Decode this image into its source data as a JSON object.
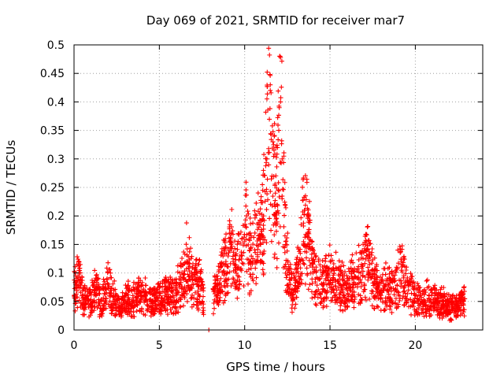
{
  "chart_data": {
    "type": "scatter",
    "title": "Day 069 of 2021, SRMTID for receiver mar7",
    "xlabel": "GPS time / hours",
    "ylabel": "SRMTID / TECUs",
    "xlim": [
      0,
      23.95
    ],
    "ylim": [
      0,
      0.5
    ],
    "x_ticks": [
      0,
      5,
      10,
      15,
      20
    ],
    "y_ticks": [
      0,
      0.05,
      0.1,
      0.15,
      0.2,
      0.25,
      0.3,
      0.35,
      0.4,
      0.45,
      0.5
    ],
    "x_tick_labels": [
      "0",
      "5",
      "10",
      "15",
      "20"
    ],
    "y_tick_labels": [
      "0",
      "0.05",
      "0.1",
      "0.15",
      "0.2",
      "0.25",
      "0.3",
      "0.35",
      "0.4",
      "0.45",
      "0.5"
    ],
    "grid": true,
    "marker": "+",
    "marker_color": "#ff0000",
    "axis_color": "#000000",
    "grid_color": "#a0a0a0",
    "series": [
      {
        "name": "SRMTID",
        "points": [
          [
            0.1,
            0.08
          ],
          [
            0.3,
            0.1
          ],
          [
            0.5,
            0.06
          ],
          [
            0.8,
            0.05
          ],
          [
            1.2,
            0.07
          ],
          [
            1.6,
            0.05
          ],
          [
            2.0,
            0.08
          ],
          [
            2.3,
            0.06
          ],
          [
            2.7,
            0.04
          ],
          [
            3.0,
            0.06
          ],
          [
            3.4,
            0.05
          ],
          [
            3.8,
            0.07
          ],
          [
            4.2,
            0.06
          ],
          [
            4.6,
            0.05
          ],
          [
            5.0,
            0.06
          ],
          [
            5.4,
            0.07
          ],
          [
            5.8,
            0.06
          ],
          [
            6.2,
            0.08
          ],
          [
            6.6,
            0.12
          ],
          [
            7.0,
            0.08
          ],
          [
            7.4,
            0.09
          ],
          [
            7.9,
            0.0
          ],
          [
            8.2,
            0.07
          ],
          [
            8.6,
            0.09
          ],
          [
            8.9,
            0.12
          ],
          [
            9.2,
            0.15
          ],
          [
            9.5,
            0.11
          ],
          [
            9.8,
            0.13
          ],
          [
            10.1,
            0.18
          ],
          [
            10.3,
            0.14
          ],
          [
            10.6,
            0.17
          ],
          [
            10.9,
            0.16
          ],
          [
            11.1,
            0.2
          ],
          [
            11.3,
            0.3
          ],
          [
            11.5,
            0.42
          ],
          [
            11.6,
            0.27
          ],
          [
            11.8,
            0.24
          ],
          [
            11.9,
            0.22
          ],
          [
            12.0,
            0.35
          ],
          [
            12.05,
            0.48
          ],
          [
            12.1,
            0.4
          ],
          [
            12.2,
            0.3
          ],
          [
            12.4,
            0.15
          ],
          [
            12.6,
            0.08
          ],
          [
            12.9,
            0.07
          ],
          [
            13.2,
            0.12
          ],
          [
            13.5,
            0.21
          ],
          [
            13.7,
            0.17
          ],
          [
            14.0,
            0.1
          ],
          [
            14.3,
            0.09
          ],
          [
            14.6,
            0.08
          ],
          [
            14.9,
            0.1
          ],
          [
            15.2,
            0.09
          ],
          [
            15.6,
            0.08
          ],
          [
            16.0,
            0.07
          ],
          [
            16.4,
            0.09
          ],
          [
            16.8,
            0.1
          ],
          [
            17.2,
            0.13
          ],
          [
            17.6,
            0.09
          ],
          [
            18.0,
            0.07
          ],
          [
            18.4,
            0.08
          ],
          [
            18.8,
            0.07
          ],
          [
            19.2,
            0.12
          ],
          [
            19.6,
            0.07
          ],
          [
            20.0,
            0.06
          ],
          [
            20.4,
            0.05
          ],
          [
            20.8,
            0.06
          ],
          [
            21.2,
            0.05
          ],
          [
            21.6,
            0.05
          ],
          [
            22.0,
            0.04
          ],
          [
            22.4,
            0.04
          ],
          [
            22.8,
            0.05
          ]
        ]
      }
    ]
  }
}
